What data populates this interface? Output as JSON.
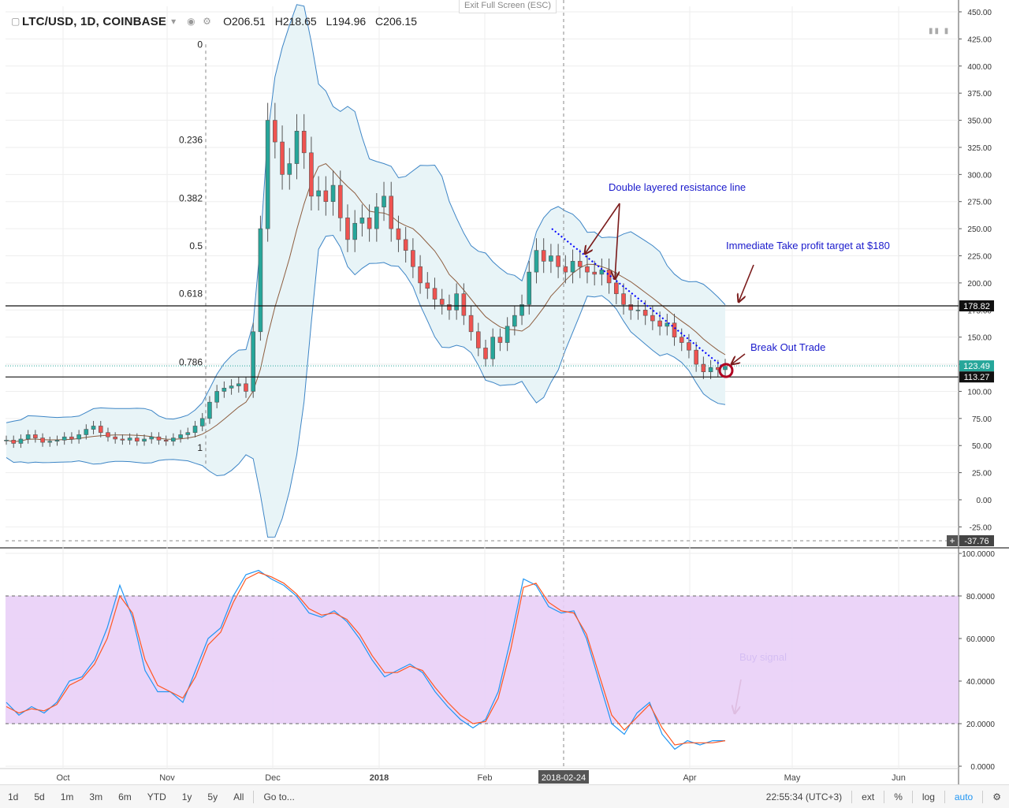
{
  "header": {
    "symbol": "LTC/USD, 1D, COINBASE",
    "open": "O206.51",
    "high": "H218.65",
    "low": "L194.96",
    "close": "C206.15"
  },
  "exit_fullscreen": "Exit Full Screen (ESC)",
  "top_controls": "▮▮ ▮",
  "price_labels": {
    "resistance": "178.82",
    "last": "123.49",
    "support": "113.27",
    "crosshair": "-37.76"
  },
  "crosshair_date": "2018-02-24",
  "annotations": {
    "resistance": "Double layered resistance line",
    "take_profit": "Immediate Take profit target at $180",
    "breakout": "Break Out Trade",
    "buy_signal": "Buy signal"
  },
  "bottom_bar": {
    "ranges": [
      "1d",
      "5d",
      "1m",
      "3m",
      "6m",
      "YTD",
      "1y",
      "5y",
      "All"
    ],
    "goto": "Go to...",
    "time": "22:55:34 (UTC+3)",
    "ext": "ext",
    "percent": "%",
    "log": "log",
    "auto": "auto"
  },
  "colors": {
    "bull": "#26a69a",
    "bear": "#ef5350",
    "candle_body": "#555555",
    "band": "#3d85c6",
    "band_fill": "#e8f4f7",
    "ma": "#8d5d3f",
    "trend": "#0000ff",
    "arrow": "#7b1c1c",
    "stoch_k": "#2196f3",
    "stoch_d": "#ff5722",
    "stoch_bg": "#e9cff7",
    "annotation": "#1a1acc"
  },
  "chart_data": [
    {
      "type": "candlestick",
      "title": "LTC/USD, 1D, COINBASE",
      "y_axis_ticks": [
        "450.00",
        "425.00",
        "400.00",
        "375.00",
        "350.00",
        "325.00",
        "300.00",
        "275.00",
        "250.00",
        "225.00",
        "200.00",
        "175.00",
        "150.00",
        "125.00",
        "100.00",
        "75.00",
        "50.00",
        "25.00",
        "0.00",
        "-25.00"
      ],
      "x_axis_ticks": [
        "Oct",
        "Nov",
        "Dec",
        "2018",
        "Feb",
        "2018-02-24",
        "Apr",
        "May",
        "Jun"
      ],
      "ylim": [
        -37.76,
        458
      ],
      "fibonacci_levels": [
        {
          "label": "0",
          "price": 420
        },
        {
          "label": "0.236",
          "price": 332
        },
        {
          "label": "0.382",
          "price": 278
        },
        {
          "label": "0.5",
          "price": 234
        },
        {
          "label": "0.618",
          "price": 190
        },
        {
          "label": "0.786",
          "price": 127
        },
        {
          "label": "1",
          "price": 48
        }
      ],
      "horizontal_lines": [
        178.82,
        113.27
      ],
      "close_series": {
        "name": "close",
        "values": [
          55,
          52,
          56,
          60,
          57,
          53,
          54,
          55,
          58,
          56,
          60,
          65,
          68,
          62,
          58,
          56,
          55,
          57,
          54,
          56,
          58,
          55,
          54,
          57,
          60,
          62,
          68,
          75,
          90,
          100,
          103,
          105,
          107,
          100,
          155,
          250,
          350,
          330,
          300,
          310,
          340,
          320,
          280,
          285,
          275,
          290,
          260,
          240,
          255,
          260,
          250,
          270,
          280,
          250,
          240,
          230,
          215,
          200,
          195,
          185,
          180,
          175,
          190,
          170,
          155,
          140,
          130,
          150,
          145,
          160,
          170,
          180,
          210,
          230,
          220,
          225,
          215,
          210,
          220,
          215,
          210,
          208,
          212,
          200,
          190,
          180,
          175,
          175,
          170,
          165,
          160,
          163,
          150,
          145,
          138,
          125,
          118,
          122,
          120,
          123
        ]
      },
      "bollinger": {
        "upper_peak": 430,
        "lower_trough": -20
      }
    },
    {
      "type": "line",
      "title": "Stochastic",
      "y_axis_ticks": [
        "100.0000",
        "80.0000",
        "60.0000",
        "40.0000",
        "20.0000",
        "0.0000"
      ],
      "ylim": [
        0,
        100
      ],
      "overbought": 80,
      "oversold": 20,
      "series": [
        {
          "values": [
            30,
            24,
            28,
            25,
            30,
            40,
            42,
            50,
            65,
            85,
            70,
            45,
            35,
            35,
            30,
            45,
            60,
            65,
            80,
            90,
            92,
            88,
            85,
            80,
            72,
            70,
            73,
            68,
            60,
            50,
            42,
            45,
            48,
            44,
            35,
            28,
            22,
            18,
            22,
            35,
            60,
            88,
            85,
            75,
            72,
            73,
            60,
            40,
            20,
            15,
            25,
            30,
            15,
            8,
            12,
            10,
            12,
            12
          ]
        },
        {
          "values": [
            28,
            25,
            27,
            26,
            29,
            38,
            41,
            48,
            60,
            80,
            72,
            50,
            38,
            35,
            32,
            42,
            57,
            63,
            77,
            88,
            91,
            89,
            86,
            81,
            74,
            71,
            72,
            69,
            62,
            52,
            44,
            44,
            47,
            45,
            37,
            30,
            24,
            20,
            21,
            32,
            55,
            84,
            86,
            77,
            73,
            72,
            62,
            43,
            24,
            17,
            23,
            29,
            18,
            10,
            11,
            11,
            11,
            12
          ]
        }
      ]
    }
  ]
}
